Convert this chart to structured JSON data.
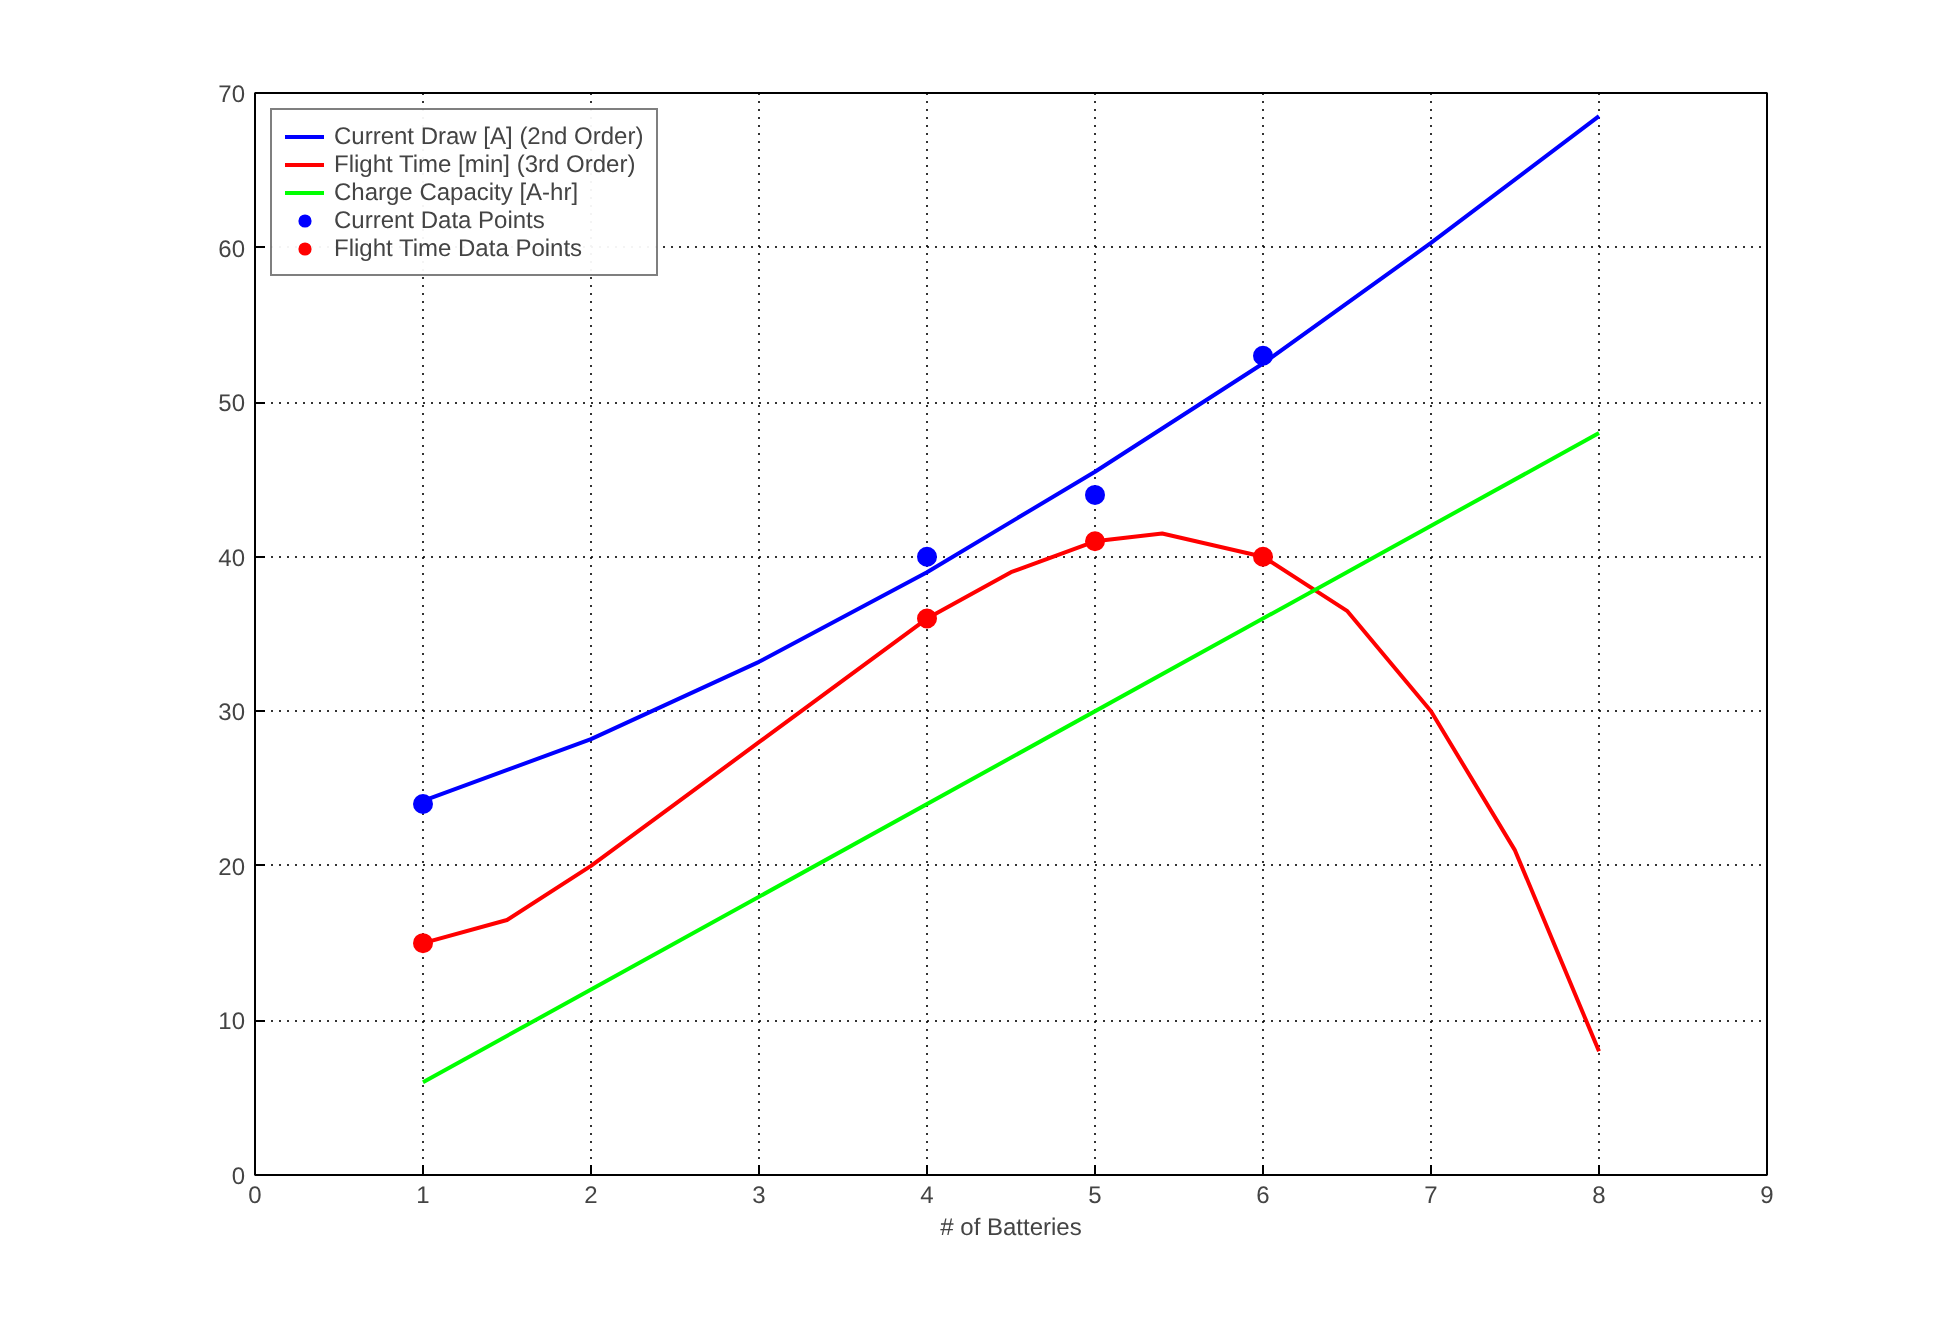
{
  "chart_data": {
    "type": "line",
    "xlabel": "# of Batteries",
    "xlim": [
      0,
      9
    ],
    "ylim": [
      0,
      70
    ],
    "xticks": [
      0,
      1,
      2,
      3,
      4,
      5,
      6,
      7,
      8,
      9
    ],
    "yticks": [
      0,
      10,
      20,
      30,
      40,
      50,
      60,
      70
    ],
    "grid": true,
    "legend": "top left",
    "series": [
      {
        "name": "Current Draw [A] (2nd Order)",
        "color": "#0000ff",
        "x": [
          1,
          2,
          3,
          4,
          5,
          6,
          7,
          8
        ],
        "values": [
          24.2,
          28.2,
          33.2,
          39,
          45.5,
          52.5,
          60.3,
          68.5
        ]
      },
      {
        "name": "Flight Time [min] (3rd Order)",
        "color": "#ff0000",
        "x": [
          1,
          1.5,
          2,
          2.5,
          3,
          3.5,
          4,
          4.5,
          5,
          5.4,
          6,
          6.5,
          7,
          7.5,
          8
        ],
        "values": [
          15,
          16.5,
          20,
          24,
          28,
          32,
          36,
          39,
          41,
          41.5,
          40,
          36.5,
          30,
          21,
          8
        ]
      },
      {
        "name": "Charge Capacity [A-hr]",
        "color": "#00ff00",
        "x": [
          1,
          8
        ],
        "values": [
          6,
          48
        ]
      },
      {
        "name": "Current Data Points",
        "type": "scatter",
        "marker": "circle",
        "color": "#0000ff",
        "x": [
          1,
          4,
          5,
          6
        ],
        "values": [
          24,
          40,
          44,
          53
        ]
      },
      {
        "name": "Flight Time Data Points",
        "type": "scatter",
        "marker": "circle",
        "color": "#ff0000",
        "x": [
          1,
          4,
          5,
          6
        ],
        "values": [
          15,
          36,
          41,
          40
        ]
      }
    ]
  }
}
